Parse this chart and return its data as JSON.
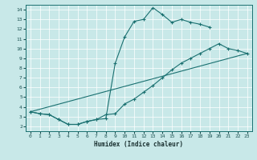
{
  "xlabel": "Humidex (Indice chaleur)",
  "bg_color": "#c8e8e8",
  "grid_color": "#ffffff",
  "line_color": "#1a7070",
  "xlim": [
    -0.5,
    23.5
  ],
  "ylim": [
    1.5,
    14.5
  ],
  "xticks": [
    0,
    1,
    2,
    3,
    4,
    5,
    6,
    7,
    8,
    9,
    10,
    11,
    12,
    13,
    14,
    15,
    16,
    17,
    18,
    19,
    20,
    21,
    22,
    23
  ],
  "yticks": [
    2,
    3,
    4,
    5,
    6,
    7,
    8,
    9,
    10,
    11,
    12,
    13,
    14
  ],
  "curve1_x": [
    0,
    1,
    2,
    3,
    4,
    5,
    6,
    7,
    8,
    9,
    10,
    11,
    12,
    13,
    14,
    15,
    16,
    17,
    18,
    19
  ],
  "curve1_y": [
    3.5,
    3.3,
    3.2,
    2.7,
    2.2,
    2.2,
    2.5,
    2.7,
    2.8,
    8.5,
    11.2,
    12.8,
    13.0,
    14.2,
    13.5,
    12.7,
    13.0,
    12.7,
    12.5,
    12.2
  ],
  "curve2_x": [
    0,
    1,
    2,
    3,
    4,
    5,
    6,
    7,
    8,
    9,
    10,
    11,
    12,
    13,
    14,
    15,
    16,
    17,
    18,
    19,
    20,
    21,
    22,
    23
  ],
  "curve2_y": [
    3.5,
    3.3,
    3.2,
    2.7,
    2.2,
    2.2,
    2.5,
    2.7,
    3.2,
    3.3,
    4.3,
    4.8,
    5.5,
    6.2,
    7.0,
    7.8,
    8.5,
    9.0,
    9.5,
    10.0,
    10.5,
    10.0,
    9.8,
    9.5
  ],
  "curve3_x": [
    0,
    23
  ],
  "curve3_y": [
    3.5,
    9.5
  ]
}
